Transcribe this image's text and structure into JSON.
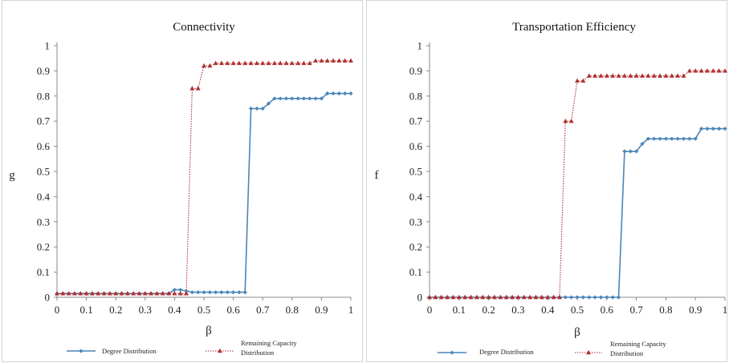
{
  "chart_data": [
    {
      "type": "line",
      "title": "Connectivity",
      "xlabel": "β",
      "ylabel": "g",
      "xlim": [
        0,
        1
      ],
      "ylim": [
        0,
        1
      ],
      "x_ticks": [
        "0",
        "0.1",
        "0.2",
        "0.3",
        "0.4",
        "0.5",
        "0.6",
        "0.7",
        "0.8",
        "0.9",
        "1"
      ],
      "y_ticks": [
        "0",
        "0.1",
        "0.2",
        "0.3",
        "0.4",
        "0.5",
        "0.6",
        "0.7",
        "0.8",
        "0.9",
        "1"
      ],
      "grid": false,
      "legend_position": "bottom",
      "series": [
        {
          "name": "Degree Distribution",
          "color": "#4a86b8",
          "marker": "diamond",
          "x": [
            0,
            0.02,
            0.04,
            0.06,
            0.08,
            0.1,
            0.12,
            0.14,
            0.16,
            0.18,
            0.2,
            0.22,
            0.24,
            0.26,
            0.28,
            0.3,
            0.32,
            0.34,
            0.36,
            0.38,
            0.4,
            0.42,
            0.44,
            0.46,
            0.48,
            0.5,
            0.52,
            0.54,
            0.56,
            0.58,
            0.6,
            0.62,
            0.64,
            0.66,
            0.68,
            0.7,
            0.72,
            0.74,
            0.76,
            0.78,
            0.8,
            0.82,
            0.84,
            0.86,
            0.88,
            0.9,
            0.92,
            0.94,
            0.96,
            0.98,
            1.0
          ],
          "values": [
            0.015,
            0.015,
            0.015,
            0.015,
            0.015,
            0.015,
            0.015,
            0.015,
            0.015,
            0.015,
            0.015,
            0.015,
            0.015,
            0.015,
            0.015,
            0.015,
            0.015,
            0.015,
            0.015,
            0.015,
            0.03,
            0.03,
            0.025,
            0.02,
            0.02,
            0.02,
            0.02,
            0.02,
            0.02,
            0.02,
            0.02,
            0.02,
            0.02,
            0.75,
            0.75,
            0.75,
            0.77,
            0.79,
            0.79,
            0.79,
            0.79,
            0.79,
            0.79,
            0.79,
            0.79,
            0.79,
            0.81,
            0.81,
            0.81,
            0.81,
            0.81
          ]
        },
        {
          "name": "Remaining Capacity Distribution",
          "color": "#b03030",
          "marker": "triangle",
          "dashed": true,
          "x": [
            0,
            0.02,
            0.04,
            0.06,
            0.08,
            0.1,
            0.12,
            0.14,
            0.16,
            0.18,
            0.2,
            0.22,
            0.24,
            0.26,
            0.28,
            0.3,
            0.32,
            0.34,
            0.36,
            0.38,
            0.4,
            0.42,
            0.44,
            0.46,
            0.48,
            0.5,
            0.52,
            0.54,
            0.56,
            0.58,
            0.6,
            0.62,
            0.64,
            0.66,
            0.68,
            0.7,
            0.72,
            0.74,
            0.76,
            0.78,
            0.8,
            0.82,
            0.84,
            0.86,
            0.88,
            0.9,
            0.92,
            0.94,
            0.96,
            0.98,
            1.0
          ],
          "values": [
            0.015,
            0.015,
            0.015,
            0.015,
            0.015,
            0.015,
            0.015,
            0.015,
            0.015,
            0.015,
            0.015,
            0.015,
            0.015,
            0.015,
            0.015,
            0.015,
            0.015,
            0.015,
            0.015,
            0.015,
            0.015,
            0.015,
            0.015,
            0.83,
            0.83,
            0.92,
            0.92,
            0.93,
            0.93,
            0.93,
            0.93,
            0.93,
            0.93,
            0.93,
            0.93,
            0.93,
            0.93,
            0.93,
            0.93,
            0.93,
            0.93,
            0.93,
            0.93,
            0.93,
            0.94,
            0.94,
            0.94,
            0.94,
            0.94,
            0.94,
            0.94
          ]
        }
      ]
    },
    {
      "type": "line",
      "title": "Transportation Efficiency",
      "xlabel": "β",
      "ylabel": "f",
      "xlim": [
        0,
        1
      ],
      "ylim": [
        0,
        1
      ],
      "x_ticks": [
        "0",
        "0.1",
        "0.2",
        "0.3",
        "0.4",
        "0.5",
        "0.6",
        "0.7",
        "0.8",
        "0.9",
        "1"
      ],
      "y_ticks": [
        "0",
        "0.1",
        "0.2",
        "0.3",
        "0.4",
        "0.5",
        "0.6",
        "0.7",
        "0.8",
        "0.9",
        "1"
      ],
      "grid": false,
      "legend_position": "bottom",
      "series": [
        {
          "name": "Degree Distribution",
          "color": "#4a86b8",
          "marker": "diamond",
          "x": [
            0,
            0.02,
            0.04,
            0.06,
            0.08,
            0.1,
            0.12,
            0.14,
            0.16,
            0.18,
            0.2,
            0.22,
            0.24,
            0.26,
            0.28,
            0.3,
            0.32,
            0.34,
            0.36,
            0.38,
            0.4,
            0.42,
            0.44,
            0.46,
            0.48,
            0.5,
            0.52,
            0.54,
            0.56,
            0.58,
            0.6,
            0.62,
            0.64,
            0.66,
            0.68,
            0.7,
            0.72,
            0.74,
            0.76,
            0.78,
            0.8,
            0.82,
            0.84,
            0.86,
            0.88,
            0.9,
            0.92,
            0.94,
            0.96,
            0.98,
            1.0
          ],
          "values": [
            0,
            0,
            0,
            0,
            0,
            0,
            0,
            0,
            0,
            0,
            0,
            0,
            0,
            0,
            0,
            0,
            0,
            0,
            0,
            0,
            0,
            0,
            0,
            0,
            0,
            0,
            0,
            0,
            0,
            0,
            0,
            0,
            0,
            0.58,
            0.58,
            0.58,
            0.61,
            0.63,
            0.63,
            0.63,
            0.63,
            0.63,
            0.63,
            0.63,
            0.63,
            0.63,
            0.67,
            0.67,
            0.67,
            0.67,
            0.67
          ]
        },
        {
          "name": "Remaining Capacity Distribution",
          "color": "#b03030",
          "marker": "triangle",
          "dashed": true,
          "x": [
            0,
            0.02,
            0.04,
            0.06,
            0.08,
            0.1,
            0.12,
            0.14,
            0.16,
            0.18,
            0.2,
            0.22,
            0.24,
            0.26,
            0.28,
            0.3,
            0.32,
            0.34,
            0.36,
            0.38,
            0.4,
            0.42,
            0.44,
            0.46,
            0.48,
            0.5,
            0.52,
            0.54,
            0.56,
            0.58,
            0.6,
            0.62,
            0.64,
            0.66,
            0.68,
            0.7,
            0.72,
            0.74,
            0.76,
            0.78,
            0.8,
            0.82,
            0.84,
            0.86,
            0.88,
            0.9,
            0.92,
            0.94,
            0.96,
            0.98,
            1.0
          ],
          "values": [
            0,
            0,
            0,
            0,
            0,
            0,
            0,
            0,
            0,
            0,
            0,
            0,
            0,
            0,
            0,
            0,
            0,
            0,
            0,
            0,
            0,
            0,
            0,
            0.7,
            0.7,
            0.86,
            0.86,
            0.88,
            0.88,
            0.88,
            0.88,
            0.88,
            0.88,
            0.88,
            0.88,
            0.88,
            0.88,
            0.88,
            0.88,
            0.88,
            0.88,
            0.88,
            0.88,
            0.88,
            0.9,
            0.9,
            0.9,
            0.9,
            0.9,
            0.9,
            0.9
          ]
        }
      ]
    }
  ]
}
